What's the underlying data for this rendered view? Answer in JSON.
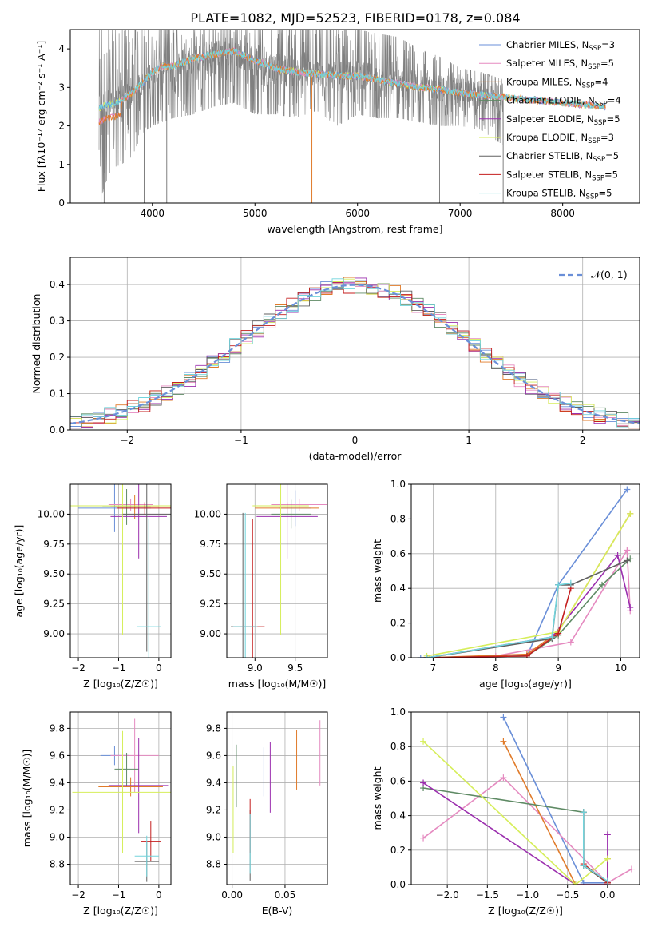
{
  "figure_title": "PLATE=1082, MJD=52523, FIBERID=0178, z=0.084",
  "colors": {
    "c_miles": "#6a8fd8",
    "s_miles": "#e58ac0",
    "k_miles": "#e07b2a",
    "c_elodie": "#5e8a64",
    "s_elodie": "#9b2fae",
    "k_elodie": "#d6ee5a",
    "c_stelib": "#606060",
    "s_stelib": "#c41e1e",
    "k_stelib": "#72d4dc",
    "spectrum": "#808080",
    "grid": "#b0b0b0"
  },
  "chart_data": [
    {
      "id": "spectrum",
      "type": "line",
      "title": "PLATE=1082, MJD=52523, FIBERID=0178, z=0.084",
      "xlabel": "wavelength [Angstrom, rest frame]",
      "ylabel": "Flux [fλ10⁻¹⁷ erg cm⁻² s⁻¹ A⁻¹]",
      "xlim": [
        3200,
        8750
      ],
      "ylim": [
        0,
        4.5
      ],
      "xticks": [
        4000,
        5000,
        6000,
        7000,
        8000
      ],
      "yticks": [
        0,
        1,
        2,
        3,
        4
      ],
      "grid": false,
      "legend_position": "top-right",
      "observed_envelope": {
        "x": [
          3480,
          3600,
          3700,
          3800,
          3900,
          4000,
          4200,
          4400,
          4600,
          4800,
          5000,
          5200,
          5400,
          5600,
          5800,
          6000,
          6200,
          6400,
          6600,
          6800,
          7000,
          7200,
          7420
        ],
        "low": [
          0.0,
          0.9,
          1.0,
          1.2,
          1.8,
          2.0,
          2.2,
          2.3,
          2.5,
          2.6,
          2.3,
          2.3,
          2.2,
          2.4,
          2.0,
          2.3,
          2.2,
          2.2,
          2.1,
          2.0,
          2.0,
          1.9,
          1.5
        ],
        "high": [
          4.5,
          4.5,
          4.5,
          4.5,
          4.5,
          4.5,
          4.5,
          4.5,
          4.5,
          4.5,
          4.5,
          4.5,
          4.5,
          4.5,
          4.5,
          4.5,
          4.4,
          4.3,
          4.0,
          3.8,
          3.5,
          3.4,
          3.2
        ]
      },
      "model_curve": {
        "x": [
          3480,
          3550,
          3650,
          3750,
          3900,
          4000,
          4100,
          4200,
          4400,
          4600,
          4800,
          5000,
          5200,
          5400,
          5600,
          5800,
          6000,
          6200,
          6400,
          6600,
          6800,
          7000,
          7200,
          7400,
          7600,
          7800,
          8000,
          8200,
          8400
        ],
        "y": [
          2.45,
          2.55,
          2.6,
          2.75,
          3.1,
          3.4,
          3.55,
          3.55,
          3.75,
          3.85,
          3.95,
          3.7,
          3.5,
          3.4,
          3.35,
          3.3,
          3.3,
          3.2,
          3.1,
          3.0,
          2.95,
          2.85,
          2.8,
          2.75,
          2.7,
          2.65,
          2.6,
          2.55,
          2.5
        ]
      },
      "legend": [
        {
          "label": "Chabrier MILES, N",
          "sub": "SSP",
          "suffix": "=3",
          "color": "c_miles"
        },
        {
          "label": "Salpeter MILES, N",
          "sub": "SSP",
          "suffix": "=5",
          "color": "s_miles"
        },
        {
          "label": "Kroupa MILES, N",
          "sub": "SSP",
          "suffix": "=4",
          "color": "k_miles"
        },
        {
          "label": "Chabrier ELODIE, N",
          "sub": "SSP",
          "suffix": "=4",
          "color": "c_elodie"
        },
        {
          "label": "Salpeter ELODIE, N",
          "sub": "SSP",
          "suffix": "=5",
          "color": "s_elodie"
        },
        {
          "label": "Kroupa ELODIE, N",
          "sub": "SSP",
          "suffix": "=3",
          "color": "k_elodie"
        },
        {
          "label": "Chabrier STELIB, N",
          "sub": "SSP",
          "suffix": "=5",
          "color": "c_stelib"
        },
        {
          "label": "Salpeter STELIB, N",
          "sub": "SSP",
          "suffix": "=5",
          "color": "s_stelib"
        },
        {
          "label": "Kroupa STELIB, N",
          "sub": "SSP",
          "suffix": "=5",
          "color": "k_stelib"
        }
      ]
    },
    {
      "id": "residuals",
      "type": "line",
      "xlabel": "(data-model)/error",
      "ylabel": "Normed distribution",
      "xlim": [
        -2.5,
        2.5
      ],
      "ylim": [
        0,
        0.475
      ],
      "xticks": [
        -2,
        -1,
        0,
        1,
        2
      ],
      "yticks": [
        0.0,
        0.1,
        0.2,
        0.3,
        0.4
      ],
      "grid": true,
      "legend_label": "𝒩(0, 1)",
      "legend_position": "top-right",
      "bin_width": 0.1,
      "bin_start": -2.5,
      "series_colors": [
        "c_miles",
        "s_miles",
        "k_miles",
        "c_elodie",
        "s_elodie",
        "k_elodie",
        "c_stelib",
        "s_stelib",
        "k_stelib"
      ]
    },
    {
      "id": "z_age",
      "type": "scatter",
      "xlabel": "Z [log₁₀(Z/Z☉)]",
      "ylabel": "age  [log₁₀(age/yr)]",
      "xlim": [
        -2.2,
        0.3
      ],
      "ylim": [
        8.8,
        10.25
      ],
      "xticks": [
        -2,
        -1,
        0
      ],
      "yticks": [
        9.0,
        9.25,
        9.5,
        9.75,
        10.0
      ],
      "grid": true,
      "points": [
        {
          "x": -1.1,
          "y": 10.05,
          "xerr": 0.9,
          "yerr": 0.2,
          "color": "c_miles"
        },
        {
          "x": -0.7,
          "y": 10.08,
          "xerr": 0.55,
          "yerr": 0.05,
          "color": "s_miles"
        },
        {
          "x": -0.6,
          "y": 10.06,
          "xerr": 0.6,
          "yerr": 0.1,
          "color": "k_miles"
        },
        {
          "x": -0.8,
          "y": 10.06,
          "xerr": 0.6,
          "yerr": 0.15,
          "color": "c_elodie"
        },
        {
          "x": -0.5,
          "y": 9.98,
          "xerr": 0.7,
          "yerr": 0.35,
          "color": "s_elodie"
        },
        {
          "x": -0.9,
          "y": 10.07,
          "xerr": 1.3,
          "yerr": 1.08,
          "color": "k_elodie"
        },
        {
          "x": -0.3,
          "y": 10.0,
          "xerr": 0.6,
          "yerr": 1.15,
          "color": "c_stelib"
        },
        {
          "x": -0.35,
          "y": 10.05,
          "xerr": 0.7,
          "yerr": 0.05,
          "color": "s_stelib"
        },
        {
          "x": -0.25,
          "y": 9.06,
          "xerr": 0.3,
          "yerr": 0.9,
          "color": "k_stelib"
        }
      ]
    },
    {
      "id": "mass_age",
      "type": "scatter",
      "xlabel": "mass [log₁₀(M/M☉)]",
      "ylabel": "",
      "xlim": [
        8.65,
        9.9
      ],
      "ylim": [
        8.8,
        10.25
      ],
      "xticks": [
        9.0,
        9.5
      ],
      "yticks": [
        9.0,
        9.25,
        9.5,
        9.75,
        10.0
      ],
      "grid": true,
      "points": [
        {
          "x": 9.5,
          "y": 10.05,
          "xerr": 0.2,
          "yerr": 0.15,
          "color": "c_miles"
        },
        {
          "x": 9.55,
          "y": 10.08,
          "xerr": 0.35,
          "yerr": 0.05,
          "color": "s_miles"
        },
        {
          "x": 9.4,
          "y": 10.05,
          "xerr": 0.4,
          "yerr": 0.05,
          "color": "k_miles"
        },
        {
          "x": 9.45,
          "y": 10.0,
          "xerr": 0.25,
          "yerr": 0.12,
          "color": "c_elodie"
        },
        {
          "x": 9.4,
          "y": 9.98,
          "xerr": 0.38,
          "yerr": 0.35,
          "color": "s_elodie"
        },
        {
          "x": 9.32,
          "y": 10.07,
          "xerr": 0.35,
          "yerr": 1.08,
          "color": "k_elodie"
        },
        {
          "x": 8.85,
          "y": 9.06,
          "xerr": 0.15,
          "yerr": 0.95,
          "color": "c_stelib"
        },
        {
          "x": 8.97,
          "y": 9.06,
          "xerr": 0.15,
          "yerr": 0.9,
          "color": "s_stelib"
        },
        {
          "x": 8.88,
          "y": 9.06,
          "xerr": 0.15,
          "yerr": 0.95,
          "color": "k_stelib"
        }
      ]
    },
    {
      "id": "age_weight",
      "type": "line",
      "xlabel": "age  [log₁₀(age/yr)]",
      "ylabel": "mass weight",
      "xlim": [
        6.65,
        10.3
      ],
      "ylim": [
        0,
        1.0
      ],
      "xticks": [
        7,
        8,
        9,
        10
      ],
      "yticks": [
        0.0,
        0.2,
        0.4,
        0.6,
        0.8,
        1.0
      ],
      "grid": true,
      "series": [
        {
          "color": "c_miles",
          "x": [
            6.8,
            8.5,
            9.0,
            10.1
          ],
          "y": [
            0.0,
            0.01,
            0.42,
            0.97
          ]
        },
        {
          "color": "s_miles",
          "x": [
            6.9,
            8.0,
            9.2,
            10.1,
            10.15
          ],
          "y": [
            0.0,
            0.01,
            0.09,
            0.62,
            0.27
          ]
        },
        {
          "color": "k_miles",
          "x": [
            6.9,
            8.5,
            9.0,
            10.15
          ],
          "y": [
            0.0,
            0.02,
            0.15,
            0.83
          ]
        },
        {
          "color": "c_elodie",
          "x": [
            6.9,
            8.5,
            9.0,
            9.7,
            10.15
          ],
          "y": [
            0.0,
            0.01,
            0.13,
            0.42,
            0.57
          ]
        },
        {
          "color": "s_elodie",
          "x": [
            6.9,
            8.9,
            9.95,
            10.15
          ],
          "y": [
            0.0,
            0.12,
            0.59,
            0.29
          ]
        },
        {
          "color": "k_elodie",
          "x": [
            6.9,
            9.0,
            10.15
          ],
          "y": [
            0.01,
            0.15,
            0.83
          ]
        },
        {
          "color": "c_stelib",
          "x": [
            6.9,
            8.9,
            9.0,
            9.2,
            10.1
          ],
          "y": [
            0.0,
            0.11,
            0.42,
            0.42,
            0.56
          ]
        },
        {
          "color": "s_stelib",
          "x": [
            6.9,
            8.5,
            9.0,
            9.2
          ],
          "y": [
            0.0,
            0.01,
            0.14,
            0.4
          ]
        },
        {
          "color": "k_stelib",
          "x": [
            6.9,
            8.9,
            9.0,
            9.2
          ],
          "y": [
            0.0,
            0.12,
            0.42,
            0.43
          ]
        }
      ]
    },
    {
      "id": "z_mass",
      "type": "scatter",
      "xlabel": "Z [log₁₀(Z/Z☉)]",
      "ylabel": "mass [log₁₀(M/M☉)]",
      "xlim": [
        -2.2,
        0.3
      ],
      "ylim": [
        8.65,
        9.92
      ],
      "xticks": [
        -2,
        -1,
        0
      ],
      "yticks": [
        8.8,
        9.0,
        9.2,
        9.4,
        9.6,
        9.8
      ],
      "grid": true,
      "points": [
        {
          "x": -1.1,
          "y": 9.6,
          "xerr": 0.35,
          "yerr": 0.07,
          "color": "c_miles"
        },
        {
          "x": -0.6,
          "y": 9.6,
          "xerr": 0.6,
          "yerr": 0.27,
          "color": "s_miles"
        },
        {
          "x": -0.7,
          "y": 9.37,
          "xerr": 0.8,
          "yerr": 0.07,
          "color": "k_miles"
        },
        {
          "x": -0.8,
          "y": 9.5,
          "xerr": 0.3,
          "yerr": 0.12,
          "color": "c_elodie"
        },
        {
          "x": -0.5,
          "y": 9.38,
          "xerr": 0.75,
          "yerr": 0.35,
          "color": "s_elodie"
        },
        {
          "x": -0.9,
          "y": 9.33,
          "xerr": 1.25,
          "yerr": 0.45,
          "color": "k_elodie"
        },
        {
          "x": -0.3,
          "y": 8.82,
          "xerr": 0.3,
          "yerr": 0.15,
          "color": "c_stelib"
        },
        {
          "x": -0.2,
          "y": 8.97,
          "xerr": 0.25,
          "yerr": 0.15,
          "color": "s_stelib"
        },
        {
          "x": -0.3,
          "y": 8.86,
          "xerr": 0.3,
          "yerr": 0.15,
          "color": "k_stelib"
        }
      ]
    },
    {
      "id": "ebv_mass",
      "type": "scatter",
      "xlabel": "E(B-V)",
      "ylabel": "",
      "xlim": [
        -0.005,
        0.09
      ],
      "ylim": [
        8.65,
        9.92
      ],
      "xticks": [
        0.0,
        0.05
      ],
      "yticks": [
        8.8,
        9.0,
        9.2,
        9.4,
        9.6,
        9.8
      ],
      "grid": true,
      "points": [
        {
          "x": 0.03,
          "y": 9.48,
          "yerr": 0.18,
          "color": "c_miles"
        },
        {
          "x": 0.083,
          "y": 9.62,
          "yerr": 0.24,
          "color": "s_miles"
        },
        {
          "x": 0.061,
          "y": 9.57,
          "yerr": 0.22,
          "color": "k_miles"
        },
        {
          "x": 0.004,
          "y": 9.45,
          "yerr": 0.23,
          "color": "c_elodie"
        },
        {
          "x": 0.036,
          "y": 9.44,
          "yerr": 0.26,
          "color": "s_elodie"
        },
        {
          "x": 0.001,
          "y": 9.2,
          "yerr": 0.32,
          "color": "k_elodie"
        },
        {
          "x": 0.017,
          "y": 8.94,
          "yerr": 0.26,
          "color": "c_stelib"
        },
        {
          "x": 0.017,
          "y": 9.08,
          "yerr": 0.2,
          "color": "s_stelib"
        },
        {
          "x": 0.017,
          "y": 8.95,
          "yerr": 0.22,
          "color": "k_stelib"
        }
      ]
    },
    {
      "id": "z_weight",
      "type": "line",
      "xlabel": "Z [log₁₀(Z/Z☉)]",
      "ylabel": "mass weight",
      "xlim": [
        -2.45,
        0.4
      ],
      "ylim": [
        0,
        1.0
      ],
      "xticks": [
        -2.0,
        -1.5,
        -1.0,
        -0.5,
        0.0
      ],
      "yticks": [
        0.0,
        0.2,
        0.4,
        0.6,
        0.8,
        1.0
      ],
      "grid": true,
      "series": [
        {
          "color": "c_miles",
          "x": [
            -1.3,
            -0.3,
            0.0
          ],
          "y": [
            0.97,
            0.01,
            0.01
          ]
        },
        {
          "color": "s_miles",
          "x": [
            -2.3,
            -1.3,
            0.0,
            0.3
          ],
          "y": [
            0.27,
            0.62,
            0.01,
            0.09
          ]
        },
        {
          "color": "k_miles",
          "x": [
            -1.3,
            -0.4,
            0.0,
            0.0
          ],
          "y": [
            0.83,
            0.0,
            0.0,
            0.15
          ]
        },
        {
          "color": "c_elodie",
          "x": [
            -2.3,
            -0.3,
            -0.3,
            0.0
          ],
          "y": [
            0.56,
            0.42,
            0.11,
            0.01
          ]
        },
        {
          "color": "s_elodie",
          "x": [
            -2.3,
            -0.4,
            0.0,
            0.0
          ],
          "y": [
            0.59,
            0.0,
            0.0,
            0.29
          ]
        },
        {
          "color": "k_elodie",
          "x": [
            -2.3,
            -0.4,
            0.0
          ],
          "y": [
            0.83,
            0.0,
            0.15
          ]
        },
        {
          "color": "c_stelib",
          "x": [
            -0.3,
            -0.3,
            0.0
          ],
          "y": [
            0.42,
            0.11,
            0.01
          ]
        },
        {
          "color": "s_stelib",
          "x": [
            -0.3,
            -0.3,
            0.0
          ],
          "y": [
            0.41,
            0.12,
            0.01
          ]
        },
        {
          "color": "k_stelib",
          "x": [
            -0.3,
            -0.3,
            0.0
          ],
          "y": [
            0.42,
            0.11,
            0.02
          ]
        }
      ]
    }
  ]
}
